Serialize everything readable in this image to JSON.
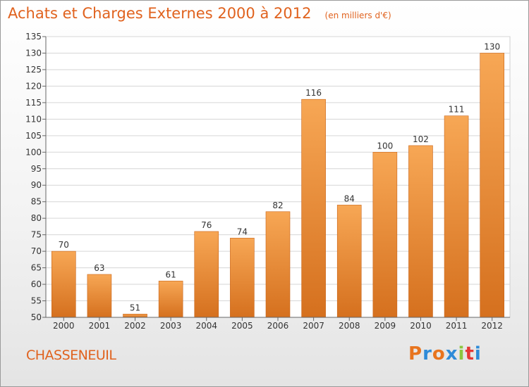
{
  "header": {
    "title": "Achats et Charges Externes 2000 à 2012",
    "subtitle": "(en milliers d'€)"
  },
  "footer": {
    "commune": "CHASSENEUIL",
    "logo_text": "Proxiti",
    "logo_colors": [
      "#E8741E",
      "#2E8BD8",
      "#E8741E",
      "#2E8BD8",
      "#8CC63F",
      "#E53935",
      "#2E8BD8"
    ]
  },
  "colors": {
    "accent": "#E0621E",
    "bar_top": "#F7A755",
    "bar_bottom": "#D5701E"
  },
  "chart_data": {
    "type": "bar",
    "title": "Achats et Charges Externes 2000 à 2012",
    "subtitle": "(en milliers d'€)",
    "xlabel": "",
    "ylabel": "",
    "categories": [
      "2000",
      "2001",
      "2002",
      "2003",
      "2004",
      "2005",
      "2006",
      "2007",
      "2008",
      "2009",
      "2010",
      "2011",
      "2012"
    ],
    "values": [
      70,
      63,
      51,
      61,
      76,
      74,
      82,
      116,
      84,
      100,
      102,
      111,
      130
    ],
    "ylim": [
      50,
      135
    ],
    "yticks": [
      50,
      55,
      60,
      65,
      70,
      75,
      80,
      85,
      90,
      95,
      100,
      105,
      110,
      115,
      120,
      125,
      130,
      135
    ],
    "grid": true,
    "legend": "none"
  }
}
